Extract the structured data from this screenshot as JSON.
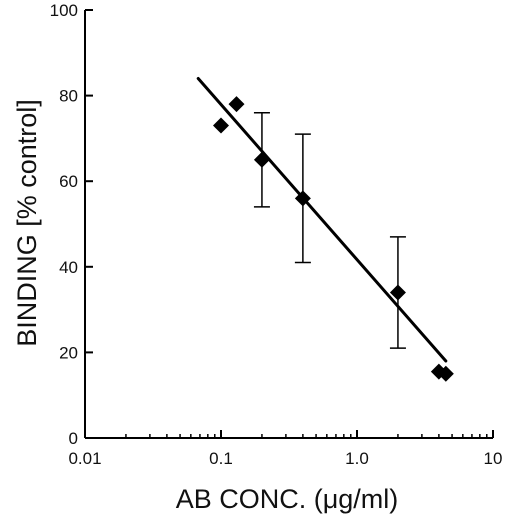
{
  "chart_data": {
    "type": "scatter",
    "title": "",
    "xlabel": "AB  CONC. (μg/ml)",
    "ylabel": "BINDING [% control]",
    "x_scale": "log",
    "xlim": [
      0.01,
      10
    ],
    "ylim": [
      0,
      100
    ],
    "x_ticks": [
      0.01,
      0.1,
      1.0,
      10
    ],
    "x_tick_labels": [
      "0.01",
      "0.1",
      "1.0",
      "10"
    ],
    "y_ticks": [
      0,
      20,
      40,
      60,
      80,
      100
    ],
    "y_tick_labels": [
      "0",
      "20",
      "40",
      "60",
      "80",
      "100"
    ],
    "grid": false,
    "legend": "none",
    "marker": "diamond",
    "marker_color": "#000000",
    "points": [
      {
        "x": 0.1,
        "y": 73
      },
      {
        "x": 0.13,
        "y": 78
      },
      {
        "x": 0.2,
        "y": 65,
        "err_low": 54,
        "err_high": 76
      },
      {
        "x": 0.4,
        "y": 56,
        "err_low": 41,
        "err_high": 71
      },
      {
        "x": 2.0,
        "y": 34,
        "err_low": 21,
        "err_high": 47
      },
      {
        "x": 4.0,
        "y": 15.5
      },
      {
        "x": 4.5,
        "y": 15
      }
    ],
    "fit_line": {
      "x": [
        0.068,
        4.5
      ],
      "y": [
        84,
        18
      ]
    }
  }
}
